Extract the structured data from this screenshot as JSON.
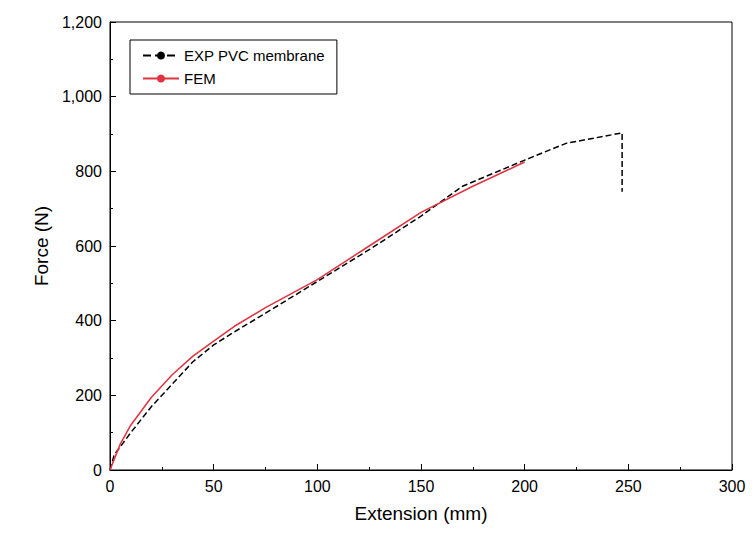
{
  "chart_data": {
    "type": "line",
    "x_label": "Extension (mm)",
    "y_label": "Force (N)",
    "xlim": [
      0,
      300
    ],
    "xticks": [
      0,
      50,
      100,
      150,
      200,
      250,
      300
    ],
    "ylim": [
      0,
      1200
    ],
    "yticks": [
      0,
      200,
      400,
      600,
      800,
      1000,
      1200
    ],
    "grid": false,
    "legend": "upper left",
    "series": [
      {
        "name": "EXP PVC membrane",
        "color": "#000000",
        "line_style": "dashed",
        "marker": "none",
        "x": [
          0,
          2,
          10,
          20,
          30,
          40,
          50,
          60,
          75,
          100,
          125,
          150,
          170,
          200,
          220,
          247,
          247
        ],
        "values": [
          0,
          40,
          100,
          170,
          230,
          290,
          335,
          370,
          420,
          505,
          590,
          680,
          760,
          830,
          875,
          903,
          745
        ]
      },
      {
        "name": "FEM",
        "color": "#e0333f",
        "line_style": "solid",
        "marker": "none",
        "x": [
          0,
          5,
          10,
          20,
          30,
          40,
          50,
          60,
          75,
          100,
          125,
          150,
          175,
          200
        ],
        "values": [
          0,
          70,
          120,
          195,
          255,
          305,
          345,
          385,
          435,
          510,
          600,
          690,
          760,
          825
        ]
      }
    ]
  }
}
